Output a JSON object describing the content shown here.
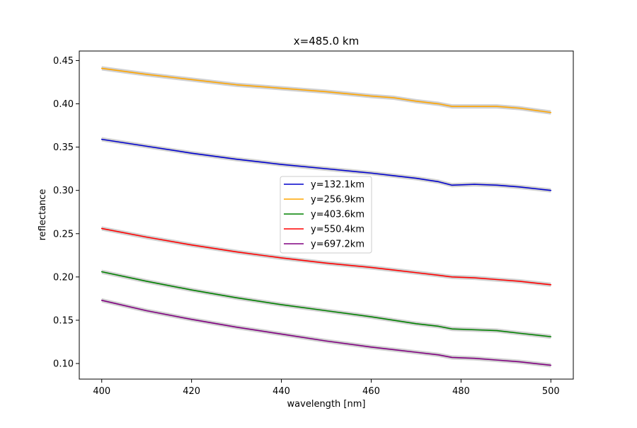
{
  "chart_data": {
    "type": "line",
    "title": "x=485.0 km",
    "xlabel": "wavelength [nm]",
    "ylabel": "reflectance",
    "xlim": [
      395,
      505
    ],
    "ylim": [
      0.082,
      0.461
    ],
    "xticks": [
      400,
      420,
      440,
      460,
      480,
      500
    ],
    "xtick_labels": [
      "400",
      "420",
      "440",
      "460",
      "480",
      "500"
    ],
    "yticks": [
      0.1,
      0.15,
      0.2,
      0.25,
      0.3,
      0.35,
      0.4,
      0.45
    ],
    "ytick_labels": [
      "0.10",
      "0.15",
      "0.20",
      "0.25",
      "0.30",
      "0.35",
      "0.40",
      "0.45"
    ],
    "grid": false,
    "legend_position": "center",
    "band_color": "#c8c8c8",
    "x": [
      400,
      410,
      420,
      430,
      440,
      450,
      460,
      465,
      470,
      475,
      478,
      483,
      488,
      493,
      500
    ],
    "series": [
      {
        "name": "y=132.1km",
        "color": "#0000cc",
        "values": [
          0.359,
          0.351,
          0.343,
          0.336,
          0.33,
          0.325,
          0.32,
          0.317,
          0.314,
          0.31,
          0.306,
          0.307,
          0.306,
          0.304,
          0.3
        ]
      },
      {
        "name": "y=256.9km",
        "color": "#ffa500",
        "values": [
          0.441,
          0.434,
          0.428,
          0.422,
          0.418,
          0.414,
          0.409,
          0.407,
          0.403,
          0.4,
          0.397,
          0.397,
          0.397,
          0.395,
          0.39
        ]
      },
      {
        "name": "y=403.6km",
        "color": "#008000",
        "values": [
          0.206,
          0.195,
          0.185,
          0.176,
          0.168,
          0.161,
          0.154,
          0.15,
          0.146,
          0.143,
          0.14,
          0.139,
          0.138,
          0.135,
          0.131
        ]
      },
      {
        "name": "y=550.4km",
        "color": "#ff0000",
        "values": [
          0.256,
          0.246,
          0.237,
          0.229,
          0.222,
          0.216,
          0.211,
          0.208,
          0.205,
          0.202,
          0.2,
          0.199,
          0.197,
          0.195,
          0.191
        ]
      },
      {
        "name": "y=697.2km",
        "color": "#800080",
        "values": [
          0.173,
          0.161,
          0.151,
          0.142,
          0.134,
          0.126,
          0.119,
          0.116,
          0.113,
          0.11,
          0.107,
          0.106,
          0.104,
          0.102,
          0.098
        ]
      }
    ]
  }
}
